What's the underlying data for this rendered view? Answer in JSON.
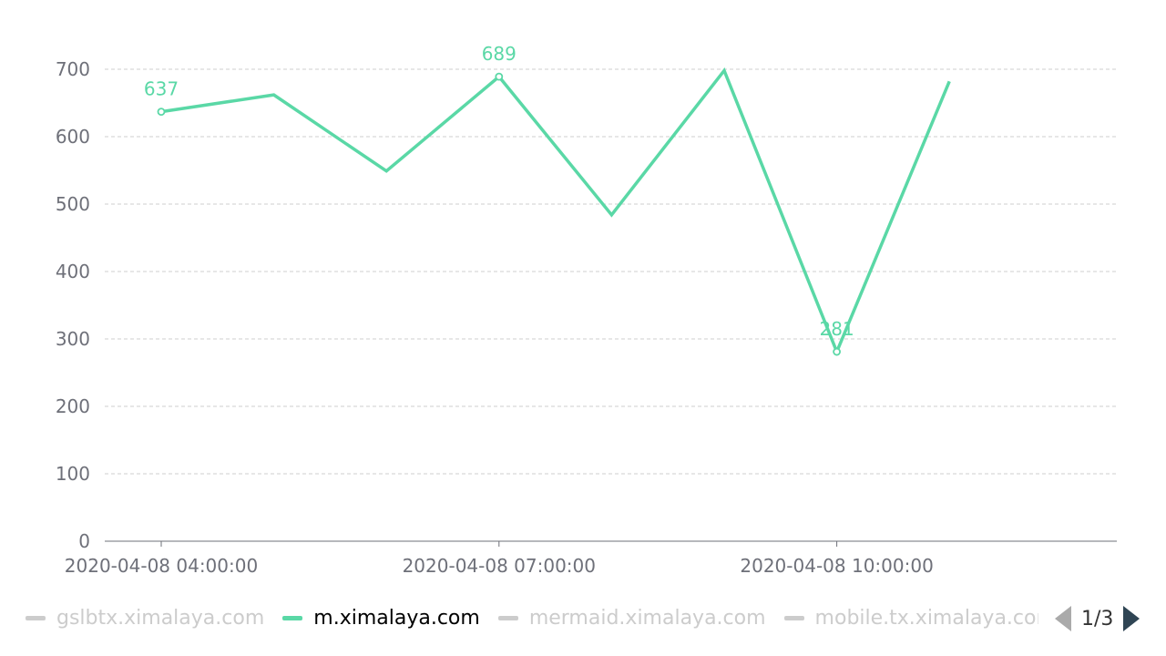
{
  "chart_data": {
    "type": "line",
    "title": "",
    "xlabel": "",
    "ylabel": "",
    "ylim": [
      0,
      700
    ],
    "yticks": [
      0,
      100,
      200,
      300,
      400,
      500,
      600,
      700
    ],
    "grid": true,
    "x": [
      "2020-04-08 04:00:00",
      "2020-04-08 05:00:00",
      "2020-04-08 06:00:00",
      "2020-04-08 07:00:00",
      "2020-04-08 08:00:00",
      "2020-04-08 09:00:00",
      "2020-04-08 10:00:00",
      "2020-04-08 11:00:00"
    ],
    "xtick_labels": [
      "2020-04-08 04:00:00",
      "2020-04-08 07:00:00",
      "2020-04-08 10:00:00"
    ],
    "series": [
      {
        "name": "m.ximalaya.com",
        "color": "#5ad8a6",
        "values": [
          637,
          662,
          549,
          689,
          484,
          698,
          281,
          682
        ],
        "labeled_points": [
          {
            "x": "2020-04-08 04:00:00",
            "value": 637,
            "label": "637"
          },
          {
            "x": "2020-04-08 07:00:00",
            "value": 689,
            "label": "689"
          },
          {
            "x": "2020-04-08 10:00:00",
            "value": 281,
            "label": "281"
          }
        ]
      }
    ],
    "legend": {
      "placement": "bottom",
      "items": [
        {
          "label": "gslbtx.ximalaya.com",
          "active": false
        },
        {
          "label": "m.ximalaya.com",
          "active": true
        },
        {
          "label": "mermaid.ximalaya.com",
          "active": false
        },
        {
          "label": "mobile.tx.ximalaya.com",
          "active": false
        }
      ],
      "page": "1/3"
    }
  }
}
